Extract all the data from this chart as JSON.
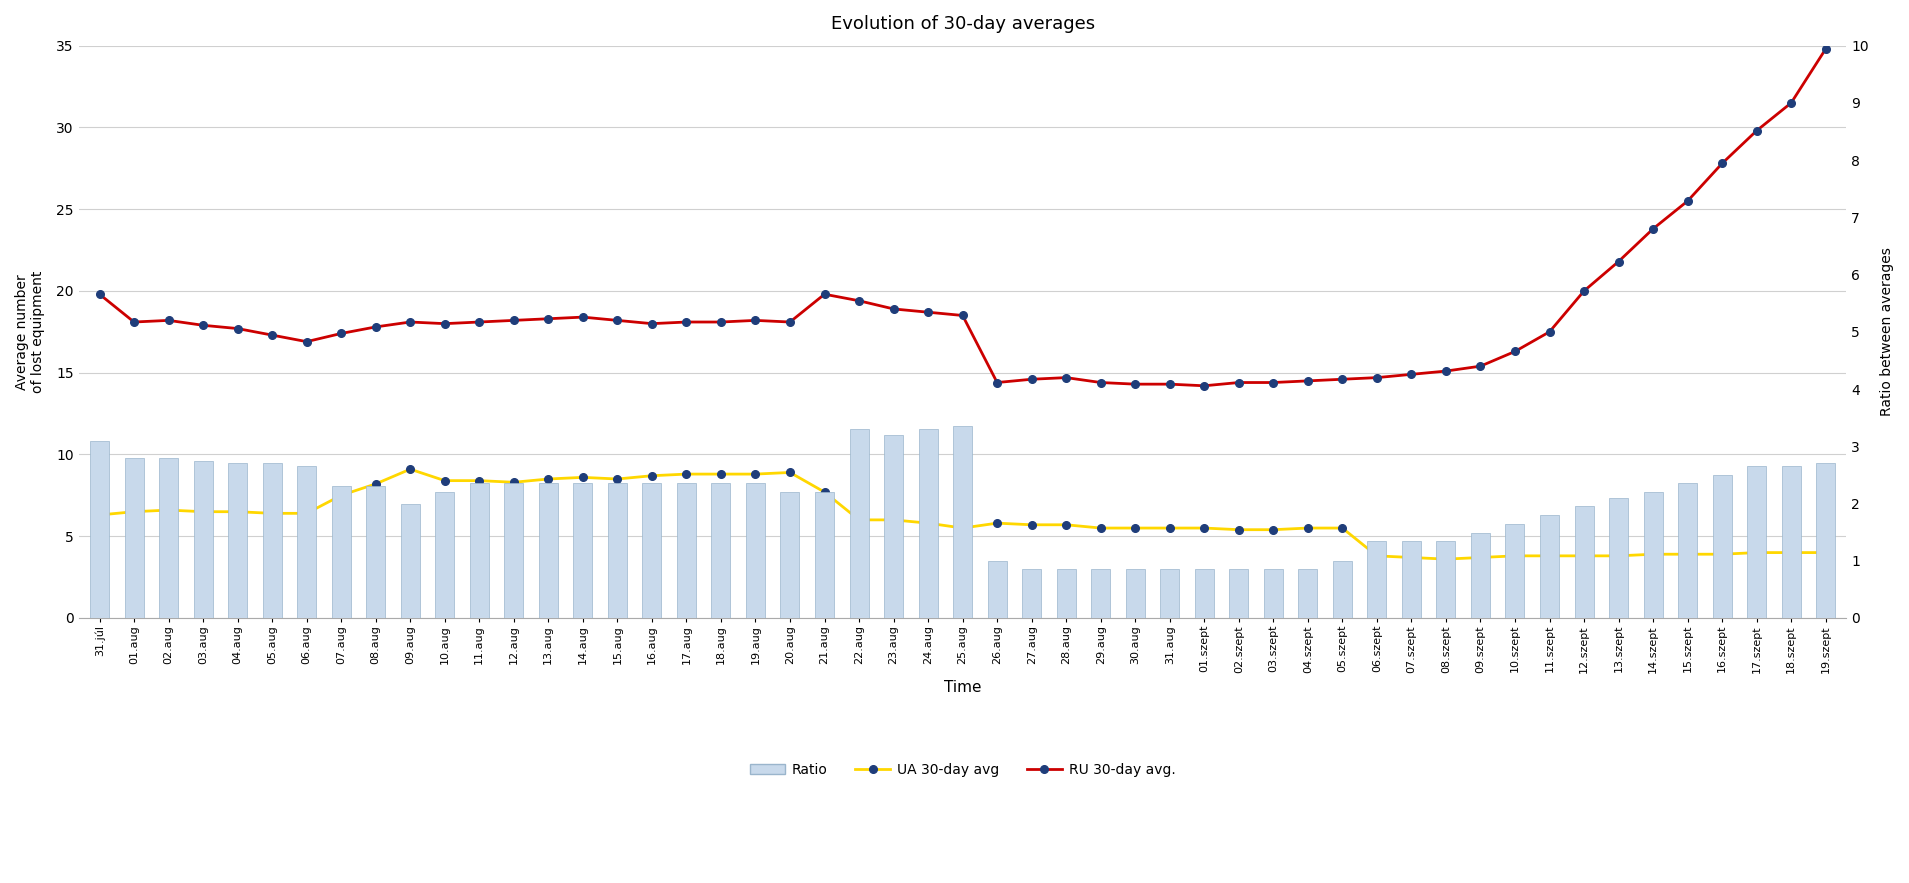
{
  "title": "Evolution of 30-day averages",
  "xlabel": "Time",
  "ylabel_left": "Average number\nof lost equipment",
  "ylabel_right": "Ratio between averages",
  "labels": [
    "31.júl",
    "01.aug",
    "02.aug",
    "03.aug",
    "04.aug",
    "05.aug",
    "06.aug",
    "07.aug",
    "08.aug",
    "09.aug",
    "10.aug",
    "11.aug",
    "12.aug",
    "13.aug",
    "14.aug",
    "15.aug",
    "16.aug",
    "17.aug",
    "18.aug",
    "19.aug",
    "20.aug",
    "21.aug",
    "22.aug",
    "23.aug",
    "24.aug",
    "25.aug",
    "26.aug",
    "27.aug",
    "28.aug",
    "29.aug",
    "30.aug",
    "31.aug",
    "01.szept",
    "02.szept",
    "03.szept",
    "04.szept",
    "05.szept",
    "06.szept",
    "07.szept",
    "08.szept",
    "09.szept",
    "10.szept",
    "11.szept",
    "12.szept",
    "13.szept",
    "14.szept",
    "15.szept",
    "16.szept",
    "17.szept",
    "18.szept",
    "19.szept"
  ],
  "ru_30day": [
    19.8,
    18.1,
    18.2,
    17.9,
    17.7,
    17.3,
    16.9,
    17.4,
    17.8,
    18.1,
    18.0,
    18.1,
    18.2,
    18.3,
    18.4,
    18.2,
    18.0,
    18.1,
    18.1,
    18.2,
    18.1,
    19.8,
    19.4,
    18.9,
    18.7,
    18.5,
    14.4,
    14.6,
    14.7,
    14.4,
    14.3,
    14.3,
    14.2,
    14.4,
    14.4,
    14.5,
    14.6,
    14.7,
    14.9,
    15.1,
    15.4,
    16.3,
    17.5,
    20.0,
    21.8,
    23.8,
    25.5,
    27.8,
    29.8,
    31.5,
    34.8
  ],
  "ua_30day": [
    6.3,
    6.5,
    6.6,
    6.5,
    6.5,
    6.4,
    6.4,
    7.5,
    8.2,
    9.1,
    8.4,
    8.4,
    8.3,
    8.5,
    8.6,
    8.5,
    8.7,
    8.8,
    8.8,
    8.8,
    8.9,
    7.7,
    6.0,
    6.0,
    5.8,
    5.5,
    5.8,
    5.7,
    5.7,
    5.5,
    5.5,
    5.5,
    5.5,
    5.4,
    5.4,
    5.5,
    5.5,
    3.8,
    3.7,
    3.6,
    3.7,
    3.8,
    3.8,
    3.8,
    3.8,
    3.9,
    3.9,
    3.9,
    4.0,
    4.0,
    4.0
  ],
  "ratio": [
    3.1,
    2.8,
    2.8,
    2.75,
    2.7,
    2.7,
    2.65,
    2.3,
    2.3,
    2.0,
    2.2,
    2.35,
    2.35,
    2.35,
    2.35,
    2.35,
    2.35,
    2.35,
    2.35,
    2.35,
    2.2,
    2.2,
    3.3,
    3.2,
    3.3,
    3.35,
    1.0,
    0.85,
    0.85,
    0.85,
    0.85,
    0.85,
    0.85,
    0.85,
    0.85,
    0.85,
    1.0,
    1.35,
    1.35,
    1.35,
    1.48,
    1.65,
    1.8,
    1.95,
    2.1,
    2.2,
    2.35,
    2.5,
    2.65,
    2.65,
    2.7
  ],
  "bar_color": "#c8d9eb",
  "ua_line_color": "#ffd700",
  "ua_marker_color": "#1f3d7a",
  "ru_line_color": "#cc0000",
  "ru_marker_color": "#1f3d7a",
  "ylim_left": [
    0,
    35
  ],
  "ylim_right": [
    0,
    10
  ],
  "yticks_left": [
    0,
    5,
    10,
    15,
    20,
    25,
    30,
    35
  ],
  "yticks_right": [
    0,
    1,
    2,
    3,
    4,
    5,
    6,
    7,
    8,
    9,
    10
  ],
  "bg_color": "#ffffff",
  "grid_color": "#d0d0d0"
}
